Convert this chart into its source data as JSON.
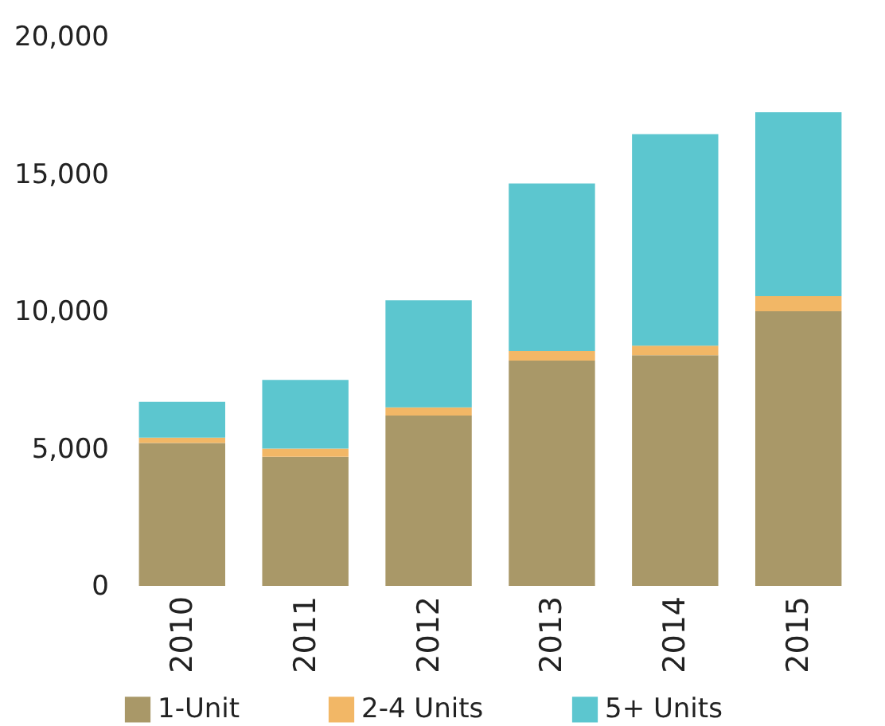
{
  "chart_data": {
    "type": "bar",
    "stacked": true,
    "categories": [
      "2010",
      "2011",
      "2012",
      "2013",
      "2014",
      "2015"
    ],
    "series": [
      {
        "name": "1-Unit",
        "color": "#a99868",
        "values": [
          5200,
          4700,
          6200,
          8200,
          8400,
          10000
        ]
      },
      {
        "name": "2-4 Units",
        "color": "#f2b766",
        "values": [
          200,
          300,
          300,
          350,
          350,
          550
        ]
      },
      {
        "name": "5+ Units",
        "color": "#5cc6cf",
        "values": [
          1300,
          2500,
          3900,
          6100,
          7700,
          6700
        ]
      }
    ],
    "ylim": [
      0,
      20000
    ],
    "yticks": [
      {
        "value": 0,
        "label": "0"
      },
      {
        "value": 5000,
        "label": "5,000"
      },
      {
        "value": 10000,
        "label": "10,000"
      },
      {
        "value": 15000,
        "label": "15,000"
      },
      {
        "value": 20000,
        "label": "20,000"
      }
    ],
    "grid": false,
    "legend": "bottom"
  }
}
